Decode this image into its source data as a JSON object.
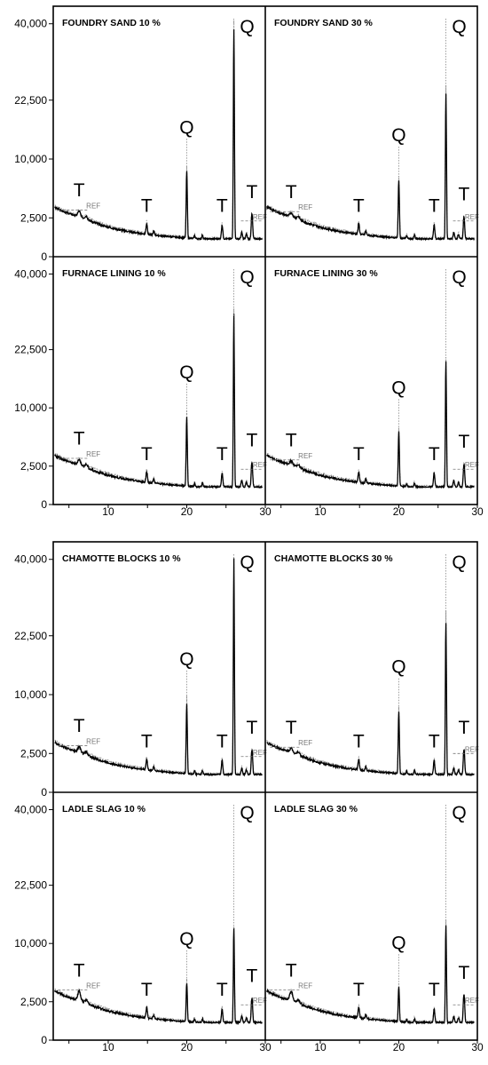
{
  "chart_data": {
    "type": "line",
    "y_tick_labels": [
      "0",
      "2,500",
      "10,000",
      "22,500",
      "40,000"
    ],
    "x_tick_labels": [
      "10",
      "20",
      "30"
    ],
    "xlim": [
      3,
      30
    ],
    "ref_label": "REF",
    "panels": [
      {
        "title": "FOUNDRY SAND  10 %",
        "q_peak": 40000,
        "q_mid": 8500,
        "t_first": 3200,
        "t_last": 3000,
        "ref_tail": 2300
      },
      {
        "title": "FOUNDRY SAND  30 %",
        "q_peak": 24000,
        "q_mid": 7500,
        "t_first": 3000,
        "t_last": 2700,
        "ref_tail": 2300
      },
      {
        "title": "FURNACE LINING  10 %",
        "q_peak": 30000,
        "q_mid": 9000,
        "t_first": 3200,
        "t_last": 3000,
        "ref_tail": 2300
      },
      {
        "title": "FURNACE LINING  30 %",
        "q_peak": 20000,
        "q_mid": 7000,
        "t_first": 3000,
        "t_last": 2800,
        "ref_tail": 2300
      },
      {
        "title": "CHAMOTTE BLOCKS  10 %",
        "q_peak": 40000,
        "q_mid": 9000,
        "t_first": 3200,
        "t_last": 3000,
        "ref_tail": 2300
      },
      {
        "title": "CHAMOTTE BLOCKS  30 %",
        "q_peak": 26000,
        "q_mid": 8000,
        "t_first": 3000,
        "t_last": 3000,
        "ref_tail": 2500
      },
      {
        "title": "LADLE SLAG  10 %",
        "q_peak": 13000,
        "q_mid": 5000,
        "t_first": 3700,
        "t_last": 3000,
        "ref_tail": 2300
      },
      {
        "title": "LADLE SLAG  30 %",
        "q_peak": 14000,
        "q_mid": 4500,
        "t_first": 3700,
        "t_last": 3400,
        "ref_tail": 2300
      }
    ],
    "peak_labels": [
      {
        "label": "T",
        "x": 6.3
      },
      {
        "label": "T",
        "x": 14.9
      },
      {
        "label": "Q",
        "x": 20.0
      },
      {
        "label": "T",
        "x": 24.5
      },
      {
        "label": "Q",
        "x": 26.0
      },
      {
        "label": "T",
        "x": 28.3
      }
    ]
  }
}
